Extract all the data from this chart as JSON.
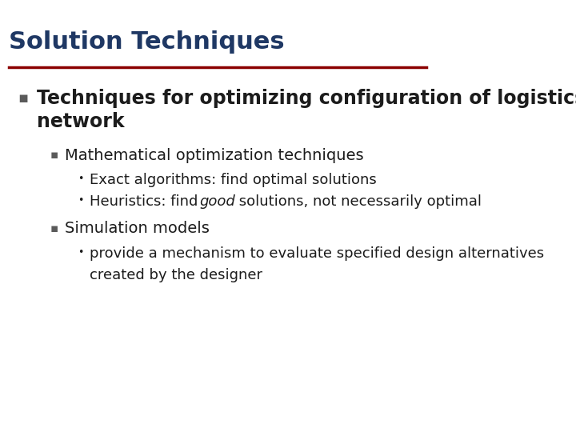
{
  "title": "Solution Techniques",
  "title_color": "#1F3864",
  "title_fontsize": 22,
  "separator_color": "#8B0000",
  "bg_color": "#FFFFFF",
  "bullet1_text": "Techniques for optimizing configuration of logistics\nnetwork",
  "bullet1_color": "#1C1C1C",
  "bullet1_fontsize": 17,
  "bullet1_marker_color": "#5A5A5A",
  "sub_bullet1_text": "Mathematical optimization techniques",
  "sub_bullet1_color": "#1C1C1C",
  "sub_bullet1_fontsize": 14,
  "sub_sub_bullet1_text": "Exact algorithms: find optimal solutions",
  "sub_sub_bullet2_text_parts": [
    "Heuristics: find ",
    "good",
    " solutions, not necessarily optimal"
  ],
  "sub_sub_bullet_color": "#1C1C1C",
  "sub_sub_bullet_fontsize": 13,
  "sub_bullet2_text": "Simulation models",
  "sub_bullet2_color": "#1C1C1C",
  "sub_bullet2_fontsize": 14,
  "sub_sub_bullet3_text_line1": "provide a mechanism to evaluate specified design alternatives",
  "sub_sub_bullet3_text_line2": "created by the designer",
  "sub_sub_bullet3_color": "#1C1C1C",
  "sub_sub_bullet3_fontsize": 13,
  "marker_color": "#5A5A5A",
  "dot_color": "#1C1C1C"
}
